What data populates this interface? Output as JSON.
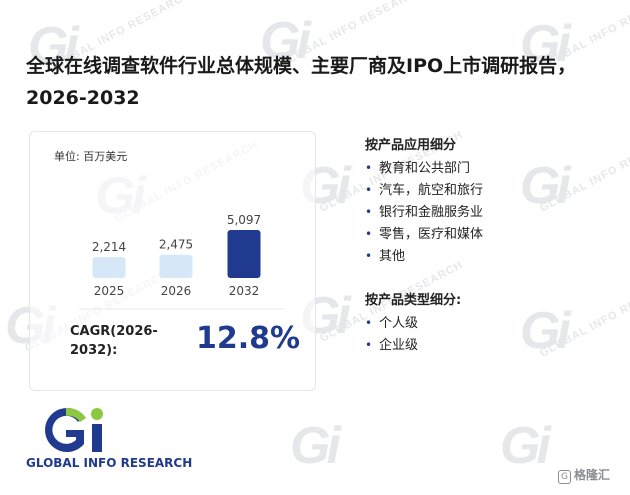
{
  "title": "全球在线调查软件行业总体规模、主要厂商及IPO上市调研报告，2026-2032",
  "unit_label": "单位: 百万美元",
  "chart_data": {
    "type": "bar",
    "title": "",
    "categories": [
      "2025",
      "2026",
      "2032"
    ],
    "values": [
      2214,
      2475,
      5097
    ],
    "value_labels": [
      "2,214",
      "2,475",
      "5,097"
    ],
    "ylim": [
      0,
      5097
    ],
    "grid": false,
    "colors": [
      "#d6e8f8",
      "#d6e8f8",
      "#1f3a8f"
    ]
  },
  "cagr": {
    "label": "CAGR(2026-2032):",
    "value": "12.8%"
  },
  "segments": {
    "by_application": {
      "title": "按产品应用细分",
      "items": [
        "教育和公共部门",
        "汽车，航空和旅行",
        "银行和金融服务业",
        "零售，医疗和媒体",
        "其他"
      ]
    },
    "by_type": {
      "title": "按产品类型细分:",
      "items": [
        "个人级",
        "企业级"
      ]
    }
  },
  "logo": {
    "text": "GLOBAL INFO RESEARCH",
    "icon": "gi-logo-icon",
    "colors": [
      "#8dc63f",
      "#1f3a8f"
    ]
  },
  "watermark": {
    "text": "GLOBAL INFO RESEARCH"
  },
  "badge": {
    "icon": "gelonghui-logo-icon",
    "text": "格隆汇"
  }
}
